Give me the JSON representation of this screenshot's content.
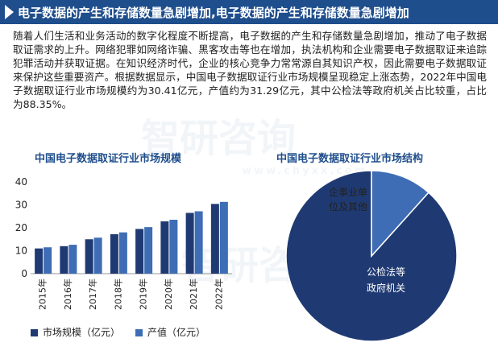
{
  "header": {
    "title": "电子数据的产生和存储数量急剧增加,电子数据的产生和存储数量急剧增加"
  },
  "intro": "随着人们生活和业务活动的数字化程度不断提高，电子数据的产生和存储数量急剧增加，推动了电子数据取证需求的上升。网络犯罪如网络诈骗、黑客攻击等也在增加，执法机构和企业需要电子数据取证来追踪犯罪活动并获取证据。在知识经济时代，企业的核心竞争力常常源自其知识产权，因此需要电子数据取证来保护这些重要资产。根据数据显示，中国电子数据取证行业市场规模呈现稳定上涨态势，2022年中国电子数据取证行业市场规模约为30.41亿元，产值约为31.29亿元，其中公检法等政府机关占比较重，占比为88.35%。",
  "watermark": {
    "brand": "智研咨询",
    "domain": "www.chyxx.com"
  },
  "colors": {
    "accent": "#1f4e8c",
    "series1": "#1f3a73",
    "series2": "#3e6db5",
    "pie_main": "#1f3a73",
    "pie_minor": "#3e6db5"
  },
  "chart_data": [
    {
      "type": "bar",
      "title": "中国电子数据取证行业市场规模",
      "categories": [
        "2015年",
        "2016年",
        "2017年",
        "2018年",
        "2019年",
        "2020年",
        "2021年",
        "2022年"
      ],
      "series": [
        {
          "name": "市场规模（亿元）",
          "values": [
            11.0,
            12.0,
            15.0,
            17.2,
            19.5,
            22.8,
            26.5,
            30.41
          ]
        },
        {
          "name": "产值（亿元）",
          "values": [
            11.5,
            12.6,
            15.7,
            18.0,
            20.3,
            23.5,
            27.2,
            31.29
          ]
        }
      ],
      "yticks": [
        0,
        10,
        20,
        30,
        40
      ],
      "ylim": [
        0,
        40
      ],
      "legend": "bottom"
    },
    {
      "type": "pie",
      "title": "中国电子数据取证行业市场结构",
      "slices": [
        {
          "label": "公检法等政府机关",
          "label_lines": [
            "公检法等",
            "政府机关"
          ],
          "value": 88.35
        },
        {
          "label": "企事业单位及其他",
          "label_lines": [
            "企事业单",
            "位及其他"
          ],
          "value": 11.65
        }
      ]
    }
  ]
}
